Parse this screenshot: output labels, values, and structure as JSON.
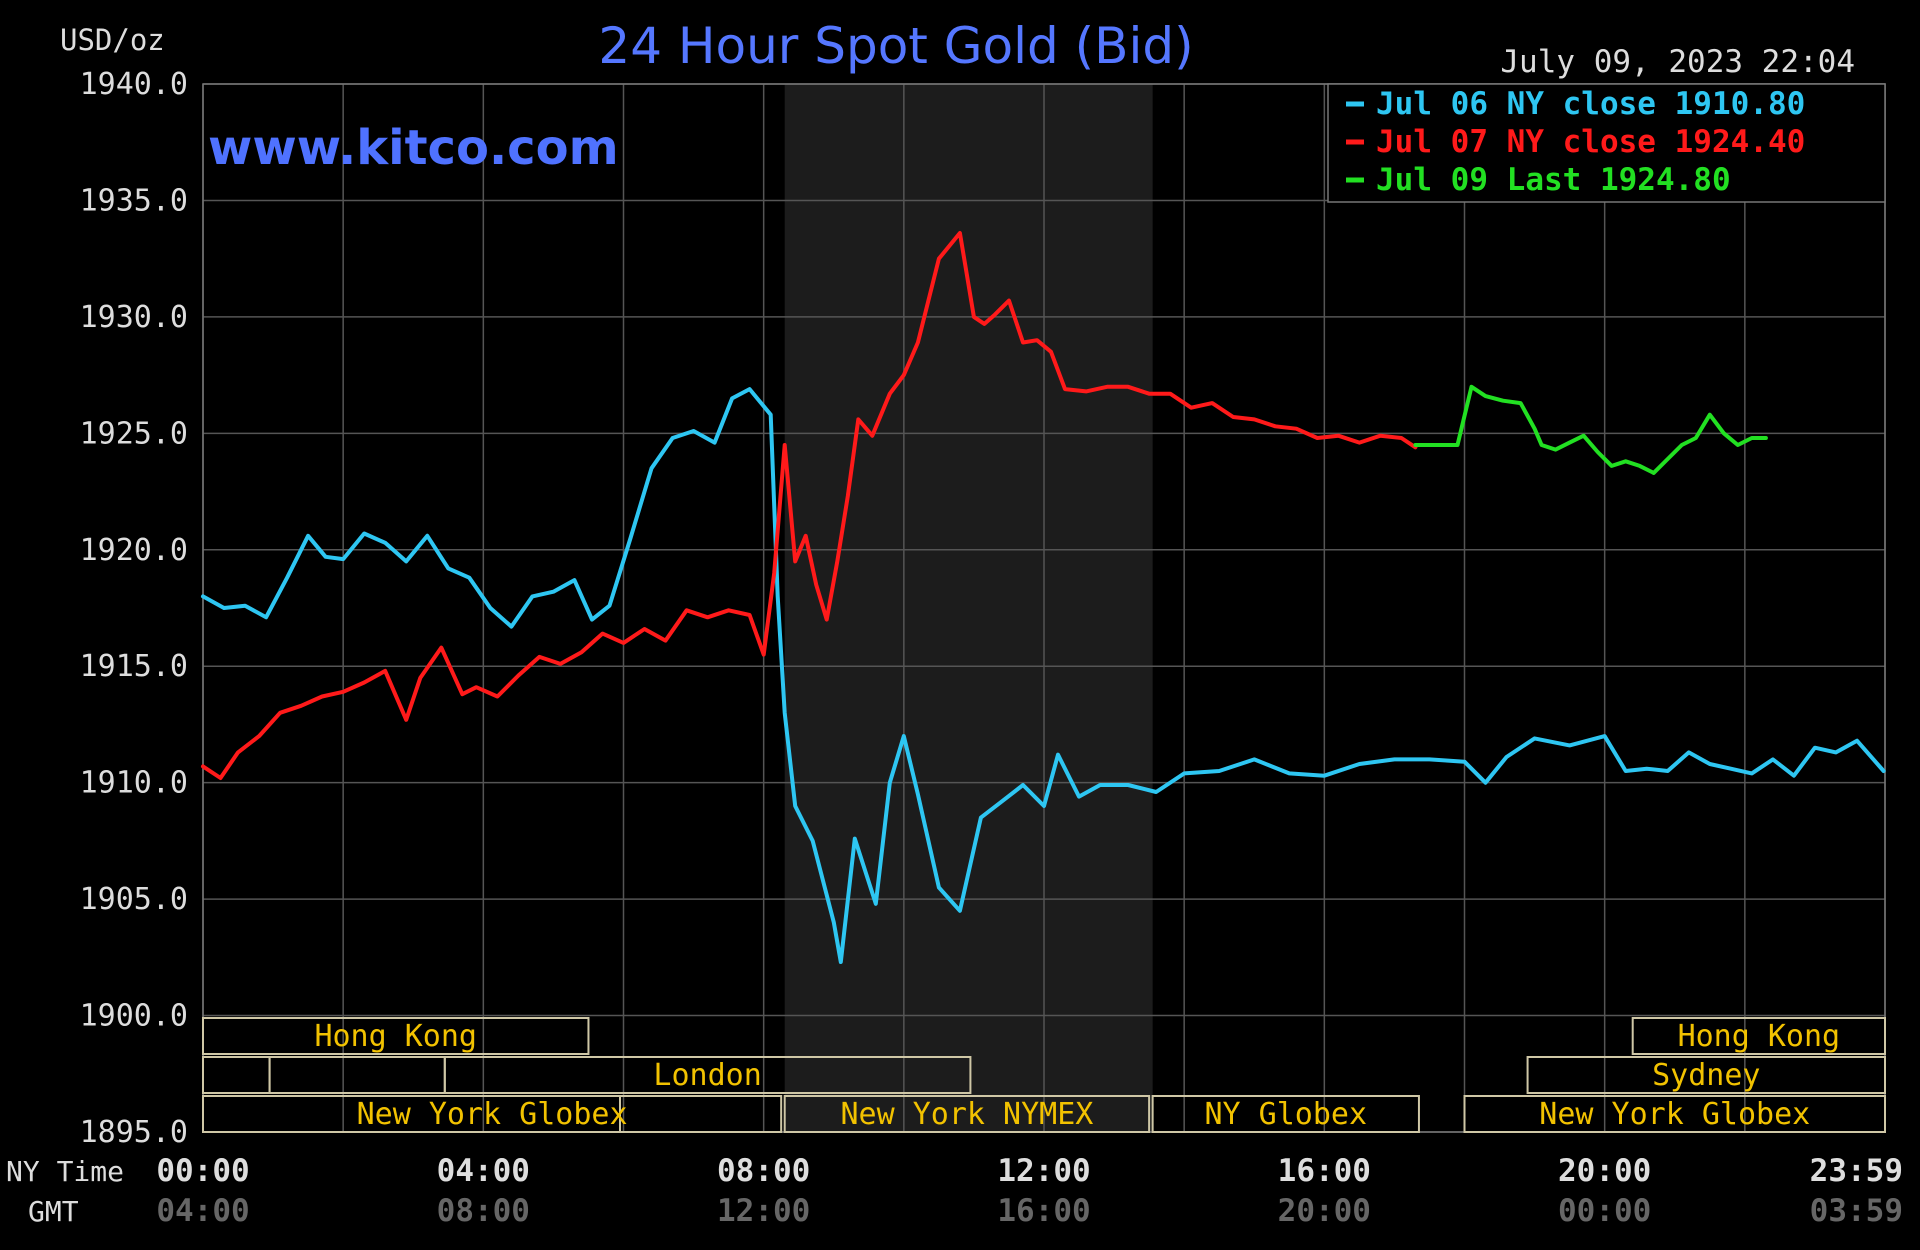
{
  "chart_data": {
    "type": "line",
    "title": "24 Hour Spot Gold (Bid)",
    "ylabel": "USD/oz",
    "watermark": "www.kitco.com",
    "timestamp": "July 09, 2023 22:04",
    "ylim": [
      1895,
      1940
    ],
    "xlim_hours": [
      0,
      24
    ],
    "y_ticks": [
      "1940.0",
      "1935.0",
      "1930.0",
      "1925.0",
      "1920.0",
      "1915.0",
      "1910.0",
      "1905.0",
      "1900.0",
      "1895.0"
    ],
    "x_ticks_ny": [
      "00:00",
      "04:00",
      "08:00",
      "12:00",
      "16:00",
      "20:00",
      "23:59"
    ],
    "x_ticks_gmt": [
      "04:00",
      "08:00",
      "12:00",
      "16:00",
      "20:00",
      "00:00",
      "03:59"
    ],
    "x_row_labels": {
      "ny": "NY Time",
      "gmt": "GMT"
    },
    "shaded_hours": [
      8.3,
      13.55
    ],
    "grid": true,
    "legend_position": "top-right",
    "series": [
      {
        "name": "Jul 06 NY close 1910.80",
        "label": "Jul 06",
        "label_mid": "NY close",
        "label_value": "1910.80",
        "color": "#2ec6f2",
        "x": [
          0,
          0.3,
          0.6,
          0.9,
          1.2,
          1.5,
          1.75,
          2.0,
          2.3,
          2.6,
          2.9,
          3.2,
          3.5,
          3.8,
          4.1,
          4.4,
          4.7,
          5.0,
          5.3,
          5.55,
          5.8,
          6.1,
          6.4,
          6.7,
          7.0,
          7.3,
          7.55,
          7.8,
          8.1,
          8.2,
          8.3,
          8.45,
          8.7,
          9.0,
          9.1,
          9.3,
          9.6,
          9.8,
          10.0,
          10.2,
          10.5,
          10.8,
          11.1,
          11.4,
          11.7,
          12.0,
          12.2,
          12.5,
          12.8,
          13.2,
          13.6,
          14.0,
          14.5,
          15.0,
          15.5,
          16.0,
          16.5,
          17.0,
          17.5,
          18.0,
          18.3,
          18.6,
          19.0,
          19.5,
          20.0,
          20.3,
          20.6,
          20.9,
          21.2,
          21.5,
          21.8,
          22.1,
          22.4,
          22.7,
          23.0,
          23.3,
          23.6,
          23.98
        ],
        "values": [
          1918.0,
          1917.5,
          1917.6,
          1917.1,
          1918.8,
          1920.6,
          1919.7,
          1919.6,
          1920.7,
          1920.3,
          1919.5,
          1920.6,
          1919.2,
          1918.8,
          1917.5,
          1916.7,
          1918.0,
          1918.2,
          1918.7,
          1917.0,
          1917.6,
          1920.5,
          1923.5,
          1924.8,
          1925.1,
          1924.6,
          1926.5,
          1926.9,
          1925.8,
          1918.0,
          1913.0,
          1909.0,
          1907.5,
          1904.0,
          1902.3,
          1907.6,
          1904.8,
          1910.0,
          1912.0,
          1909.5,
          1905.5,
          1904.5,
          1908.5,
          1909.2,
          1909.9,
          1909.0,
          1911.2,
          1909.4,
          1909.9,
          1909.9,
          1909.6,
          1910.4,
          1910.5,
          1911.0,
          1910.4,
          1910.3,
          1910.8,
          1911.0,
          1911.0,
          1910.9,
          1910.0,
          1911.1,
          1911.9,
          1911.6,
          1912.0,
          1910.5,
          1910.6,
          1910.5,
          1911.3,
          1910.8,
          1910.6,
          1910.4,
          1911.0,
          1910.3,
          1911.5,
          1911.3,
          1911.8,
          1910.5
        ]
      },
      {
        "name": "Jul 07 NY close 1924.40",
        "label": "Jul 07",
        "label_mid": "NY close",
        "label_value": "1924.40",
        "color": "#ff1a1a",
        "x": [
          0,
          0.25,
          0.5,
          0.8,
          1.1,
          1.4,
          1.7,
          2.0,
          2.3,
          2.6,
          2.9,
          3.1,
          3.4,
          3.7,
          3.9,
          4.2,
          4.5,
          4.8,
          5.1,
          5.4,
          5.7,
          6.0,
          6.3,
          6.6,
          6.9,
          7.2,
          7.5,
          7.8,
          8.0,
          8.15,
          8.3,
          8.45,
          8.6,
          8.75,
          8.9,
          9.05,
          9.2,
          9.35,
          9.55,
          9.8,
          10.0,
          10.2,
          10.5,
          10.8,
          11.0,
          11.15,
          11.3,
          11.5,
          11.7,
          11.9,
          12.1,
          12.3,
          12.6,
          12.9,
          13.2,
          13.5,
          13.8,
          14.1,
          14.4,
          14.7,
          15.0,
          15.3,
          15.6,
          15.9,
          16.2,
          16.5,
          16.8,
          17.1,
          17.3
        ],
        "values": [
          1910.7,
          1910.2,
          1911.3,
          1912.0,
          1913.0,
          1913.3,
          1913.7,
          1913.9,
          1914.3,
          1914.8,
          1912.7,
          1914.5,
          1915.8,
          1913.8,
          1914.1,
          1913.7,
          1914.6,
          1915.4,
          1915.1,
          1915.6,
          1916.4,
          1916.0,
          1916.6,
          1916.1,
          1917.4,
          1917.1,
          1917.4,
          1917.2,
          1915.5,
          1919.0,
          1924.5,
          1919.5,
          1920.6,
          1918.5,
          1917.0,
          1919.5,
          1922.3,
          1925.6,
          1924.9,
          1926.7,
          1927.5,
          1928.9,
          1932.5,
          1933.6,
          1930.0,
          1929.7,
          1930.1,
          1930.7,
          1928.9,
          1929.0,
          1928.5,
          1926.9,
          1926.8,
          1927.0,
          1927.0,
          1926.7,
          1926.7,
          1926.1,
          1926.3,
          1925.7,
          1925.6,
          1925.3,
          1925.2,
          1924.8,
          1924.9,
          1924.6,
          1924.9,
          1924.8,
          1924.4
        ]
      },
      {
        "name": "Jul 09 Last 1924.80",
        "label": "Jul 09",
        "label_mid": "Last",
        "label_value": "1924.80",
        "color": "#22e022",
        "x": [
          17.3,
          17.6,
          17.9,
          18.1,
          18.3,
          18.55,
          18.8,
          19.0,
          19.1,
          19.3,
          19.5,
          19.7,
          19.9,
          20.1,
          20.3,
          20.5,
          20.7,
          20.9,
          21.1,
          21.3,
          21.5,
          21.7,
          21.9,
          22.1,
          22.3
        ],
        "values": [
          1924.5,
          1924.5,
          1924.5,
          1927.0,
          1926.6,
          1926.4,
          1926.3,
          1925.2,
          1924.5,
          1924.3,
          1924.6,
          1924.9,
          1924.2,
          1923.6,
          1923.8,
          1923.6,
          1923.3,
          1923.9,
          1924.5,
          1924.8,
          1925.8,
          1925.0,
          1924.5,
          1924.8,
          1924.8
        ]
      }
    ],
    "sessions": [
      {
        "label": "Hong Kong",
        "row": 0,
        "start": 0.0,
        "end": 5.5
      },
      {
        "label": "Hong Kong",
        "row": 0,
        "start": 20.4,
        "end": 24.0
      },
      {
        "label": "",
        "row": 1,
        "start": 0.0,
        "end": 0.95
      },
      {
        "label": "",
        "row": 1,
        "start": 0.95,
        "end": 3.45
      },
      {
        "label": "London",
        "row": 1,
        "start": 3.45,
        "end": 10.95
      },
      {
        "label": "Sydney",
        "row": 1,
        "start": 18.9,
        "end": 24.0
      },
      {
        "label": "",
        "row": 2,
        "start": 0.0,
        "end": 5.95
      },
      {
        "label": "New York Globex",
        "row": 2,
        "start": 0.0,
        "end": 8.25
      },
      {
        "label": "New York NYMEX",
        "row": 2,
        "start": 8.3,
        "end": 13.5
      },
      {
        "label": "NY Globex",
        "row": 2,
        "start": 13.55,
        "end": 17.35
      },
      {
        "label": "New York Globex",
        "row": 2,
        "start": 18.0,
        "end": 24.0
      }
    ]
  },
  "colors": {
    "background": "#000000",
    "grid": "#555555",
    "plot_border": "#777777",
    "shade": "#1c1c1c",
    "title": "#5577ff",
    "watermark": "#4f72ff",
    "axis_text": "#dddddd",
    "gmt_text": "#666666",
    "session_text": "#f2c200",
    "session_box": "#cfc7a6"
  }
}
